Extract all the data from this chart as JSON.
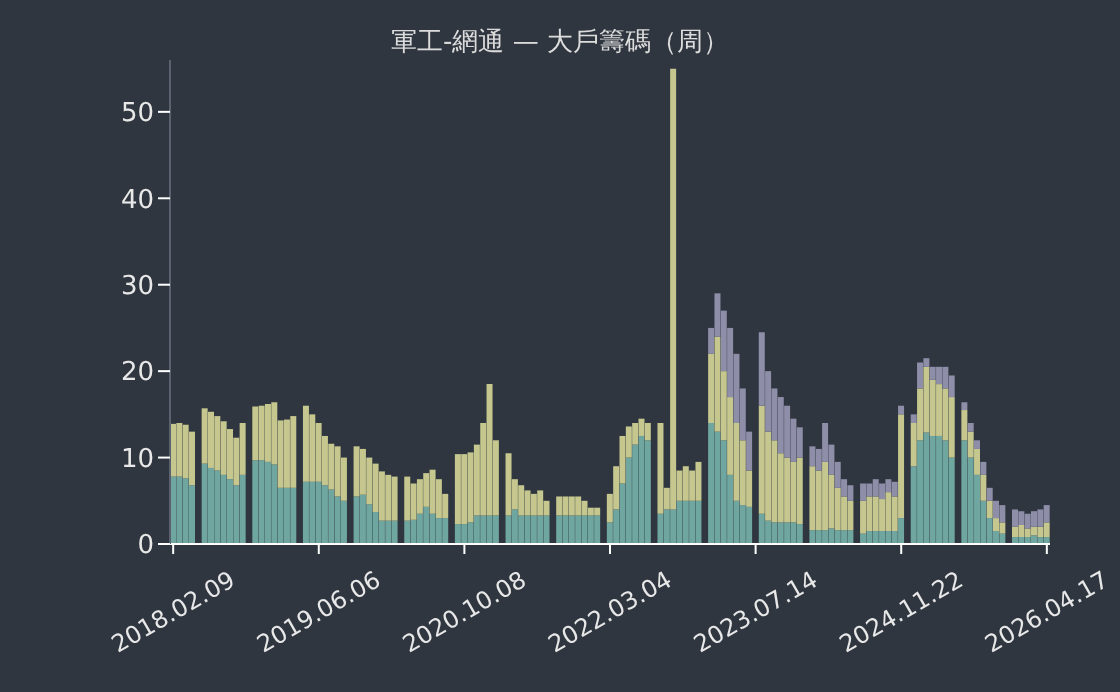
{
  "chart_data": {
    "type": "bar",
    "title": "軍工-網通 — 大戶籌碼（周）",
    "categories": [
      "2018.02.09",
      null,
      null,
      null,
      null,
      null,
      null,
      null,
      null,
      null,
      null,
      null,
      null,
      null,
      null,
      null,
      null,
      null,
      null,
      null,
      null,
      null,
      null,
      "2019.06.06",
      null,
      null,
      null,
      null,
      null,
      null,
      null,
      null,
      null,
      null,
      null,
      null,
      null,
      null,
      null,
      null,
      null,
      null,
      null,
      null,
      null,
      null,
      "2020.10.08",
      null,
      null,
      null,
      null,
      null,
      null,
      null,
      null,
      null,
      null,
      null,
      null,
      null,
      null,
      null,
      null,
      null,
      null,
      null,
      null,
      null,
      null,
      "2022.03.04",
      null,
      null,
      null,
      null,
      null,
      null,
      null,
      null,
      null,
      null,
      null,
      null,
      null,
      null,
      null,
      null,
      null,
      null,
      null,
      null,
      null,
      null,
      "2023.07.14",
      null,
      null,
      null,
      null,
      null,
      null,
      null,
      null,
      null,
      null,
      null,
      null,
      null,
      null,
      null,
      null,
      null,
      null,
      null,
      null,
      null,
      null,
      "2024.11.22",
      null,
      null,
      null,
      null,
      null,
      null,
      null,
      null,
      null,
      null,
      null,
      null,
      null,
      null,
      null,
      null,
      null,
      null,
      null,
      null,
      null,
      null,
      "2026.04.17"
    ],
    "stacked": true,
    "series": [
      {
        "color": "#6fa6a0",
        "values": [
          7.8,
          7.8,
          7.6,
          6.8,
          null,
          9.3,
          8.8,
          8.5,
          8,
          7.5,
          6.8,
          8,
          null,
          9.7,
          9.7,
          9.5,
          9.2,
          6.5,
          6.5,
          6.5,
          null,
          7.2,
          7.2,
          7.2,
          6.8,
          6.3,
          5.5,
          5,
          null,
          5.5,
          5.7,
          4.6,
          3.7,
          2.7,
          2.7,
          2.7,
          null,
          2.7,
          2.8,
          3.5,
          4.3,
          3.5,
          3,
          3,
          null,
          2.3,
          2.3,
          2.5,
          3.3,
          3.3,
          3.3,
          3.3,
          null,
          3.3,
          4,
          3.3,
          3.3,
          3.3,
          3.3,
          3.3,
          null,
          3.3,
          3.3,
          3.3,
          3.3,
          3.3,
          3.3,
          3.3,
          null,
          2.5,
          4,
          7,
          10,
          11.5,
          12.5,
          12,
          null,
          3.5,
          4,
          4,
          5,
          5,
          5,
          5,
          null,
          14,
          13,
          12,
          8,
          5,
          4.5,
          4.3,
          null,
          3.5,
          2.7,
          2.5,
          2.5,
          2.5,
          2.5,
          2.3,
          null,
          1.6,
          1.6,
          1.6,
          1.8,
          1.6,
          1.6,
          1.6,
          null,
          1.2,
          1.5,
          1.5,
          1.5,
          1.5,
          1.5,
          3,
          null,
          9,
          12,
          12.9,
          12.5,
          12.5,
          12,
          10,
          null,
          12,
          10,
          8,
          5,
          3,
          1.5,
          1.2,
          null,
          0.8,
          0.8,
          0.8,
          1,
          0.8,
          0.8
        ]
      },
      {
        "color": "#c5c78e",
        "values": [
          6.1,
          6.2,
          6.2,
          6.2,
          null,
          6.4,
          6.5,
          6.3,
          6.2,
          5.8,
          5.5,
          6,
          null,
          6.2,
          6.3,
          6.7,
          7.2,
          7.8,
          7.9,
          8.3,
          null,
          8.8,
          7.8,
          6.8,
          5.7,
          5.3,
          5.8,
          5,
          null,
          5.8,
          5.3,
          5.4,
          5.6,
          5.7,
          5.3,
          5.1,
          null,
          5.1,
          4.2,
          4,
          3.9,
          5.1,
          4.5,
          2.8,
          null,
          8.1,
          8.1,
          8.1,
          8.2,
          10.7,
          15.2,
          8.7,
          null,
          7.2,
          3.5,
          3.5,
          2.9,
          2.5,
          2.9,
          1.7,
          null,
          2.2,
          2.2,
          2.2,
          2.2,
          1.7,
          0.9,
          0.9,
          null,
          3.3,
          5,
          5.5,
          3.6,
          2.5,
          2,
          2,
          null,
          10.5,
          2.5,
          51,
          3.5,
          4,
          3.5,
          4.5,
          null,
          8,
          11,
          8,
          9,
          9,
          7.5,
          4.2,
          null,
          12.5,
          10.3,
          9.5,
          8,
          7.5,
          7,
          7.7,
          null,
          7.4,
          6.9,
          7.9,
          6.2,
          4.9,
          3.9,
          3.4,
          null,
          3.8,
          4,
          4,
          3.7,
          4.5,
          4,
          12,
          null,
          5,
          6,
          7.6,
          6.5,
          6,
          6,
          7,
          null,
          3.5,
          3,
          3,
          3,
          2,
          1.5,
          1.3,
          null,
          1.2,
          1.4,
          1,
          1,
          1.2,
          1.7
        ]
      },
      {
        "color": "#8e8ea8",
        "values": [
          null,
          null,
          null,
          null,
          null,
          null,
          null,
          null,
          null,
          null,
          null,
          null,
          null,
          null,
          null,
          null,
          null,
          null,
          null,
          null,
          null,
          null,
          null,
          null,
          null,
          null,
          null,
          null,
          null,
          null,
          null,
          null,
          null,
          null,
          null,
          null,
          null,
          null,
          null,
          null,
          null,
          null,
          null,
          null,
          null,
          null,
          null,
          null,
          null,
          null,
          null,
          null,
          null,
          null,
          null,
          null,
          null,
          null,
          null,
          null,
          null,
          null,
          null,
          null,
          null,
          null,
          null,
          null,
          null,
          null,
          null,
          null,
          null,
          null,
          null,
          null,
          null,
          null,
          null,
          null,
          null,
          null,
          null,
          null,
          null,
          3,
          5,
          7,
          8,
          8,
          6,
          4.5,
          null,
          8.5,
          7,
          6,
          6.5,
          6,
          5,
          3.5,
          null,
          2.3,
          2.5,
          4.5,
          3.5,
          3,
          2,
          1.8,
          null,
          2,
          1.5,
          2,
          1.8,
          1.5,
          1.7,
          1,
          null,
          1,
          3,
          1,
          1.5,
          2,
          2.5,
          2.5,
          null,
          0.9,
          1,
          1,
          1.5,
          1.5,
          2,
          2,
          null,
          2,
          1.6,
          1.7,
          1.8,
          2,
          2
        ]
      }
    ],
    "ylim": [
      0,
      56
    ],
    "yticks": [
      0,
      10,
      20,
      30,
      40,
      50
    ]
  }
}
